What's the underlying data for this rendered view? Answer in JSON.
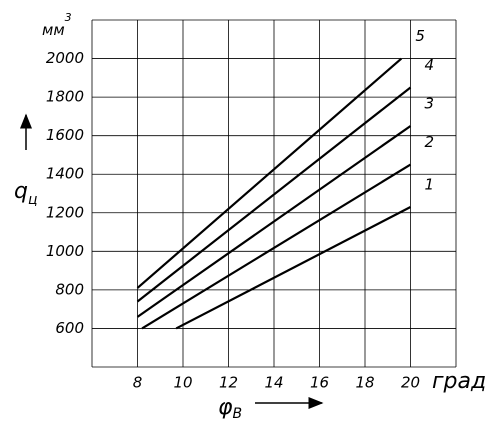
{
  "chart_data": {
    "type": "line",
    "ylabel": "q",
    "ylabel_sub": "ц",
    "yunit": "мм",
    "yunit_sup": "3",
    "xlabel": "φ",
    "xlabel_sub": "В",
    "xunit": "град",
    "xlim": [
      6,
      22
    ],
    "xticks": [
      8,
      10,
      12,
      14,
      16,
      18,
      20
    ],
    "xgrid": [
      6,
      8,
      10,
      12,
      14,
      16,
      18,
      20,
      22
    ],
    "ylim": [
      400,
      2200
    ],
    "yticks": [
      600,
      800,
      1000,
      1200,
      1400,
      1600,
      1800,
      2000
    ],
    "ygrid": [
      400,
      600,
      800,
      1000,
      1200,
      1400,
      1600,
      1800,
      2000,
      2200
    ],
    "grid": true,
    "color": "#000000",
    "series": [
      {
        "name": "1",
        "x": [
          9.7,
          20
        ],
        "values": [
          600,
          1230
        ]
      },
      {
        "name": "2",
        "x": [
          8.2,
          20
        ],
        "values": [
          600,
          1450
        ]
      },
      {
        "name": "3",
        "x": [
          8,
          20
        ],
        "values": [
          660,
          1650
        ]
      },
      {
        "name": "4",
        "x": [
          8,
          20
        ],
        "values": [
          740,
          1850
        ]
      },
      {
        "name": "5",
        "x": [
          8,
          19.6
        ],
        "values": [
          810,
          2000
        ]
      }
    ]
  }
}
